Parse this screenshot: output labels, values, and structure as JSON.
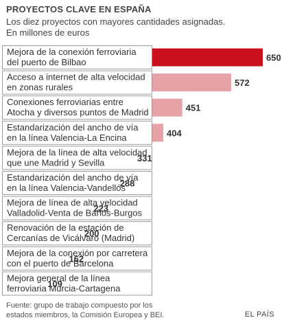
{
  "header": {
    "title": "PROYECTOS CLAVE EN ESPAÑA",
    "subtitle_line1": "Los diez proyectos con mayores cantidades asignadas.",
    "subtitle_line2": "En millones de euros"
  },
  "footer": {
    "source_line1": "Fuente: grupo de trabajo compuesto por los",
    "source_line2": "estados miembros, la Comisión Europea y BEI.",
    "brand": "EL PAÍS"
  },
  "colors": {
    "highlight": "#c8101e",
    "bar": "#e8a3a8",
    "label_box_border": "#9a9a9a"
  },
  "chart_data": {
    "type": "bar",
    "orientation": "horizontal",
    "title": "PROYECTOS CLAVE EN ESPAÑA",
    "subtitle": "Los diez proyectos con mayores cantidades asignadas. En millones de euros",
    "categories": [
      [
        "Mejora de la conexión ferroviaria",
        "del puerto de Bilbao"
      ],
      [
        "Acceso a internet de alta velocidad",
        "en zonas rurales"
      ],
      [
        "Conexiones ferroviarias entre",
        "Atocha y diversos puntos de Madrid"
      ],
      [
        "Estandarización del ancho de vía",
        "en la línea Valencia-La Encina"
      ],
      [
        "Mejora de la línea de alta velocidad",
        "que une Madrid y Sevilla"
      ],
      [
        "Estandarización del ancho de vía",
        "en la línea Valencia-Vandellós"
      ],
      [
        "Mejora de línea de alta velocidad",
        "Valladolid-Venta de Baños-Burgos"
      ],
      [
        "Renovación de la estación de",
        "Cercanías de Vicálvaro (Madrid)"
      ],
      [
        "Mejora de la conexión por carretera",
        "con el puerto de Barcelona"
      ],
      [
        "Mejora general de la línea",
        "ferroviaria Murcia-Cartagena"
      ]
    ],
    "values": [
      650,
      572,
      451,
      404,
      331,
      288,
      223,
      200,
      162,
      109
    ],
    "value_labels": [
      "650",
      "572",
      "451",
      "404",
      "331",
      "288",
      "223",
      "200",
      "162",
      "109"
    ],
    "highlighted_index": 0,
    "xlabel": "",
    "ylabel": "",
    "xlim": [
      0,
      650
    ],
    "grid": false,
    "legend": "none"
  }
}
